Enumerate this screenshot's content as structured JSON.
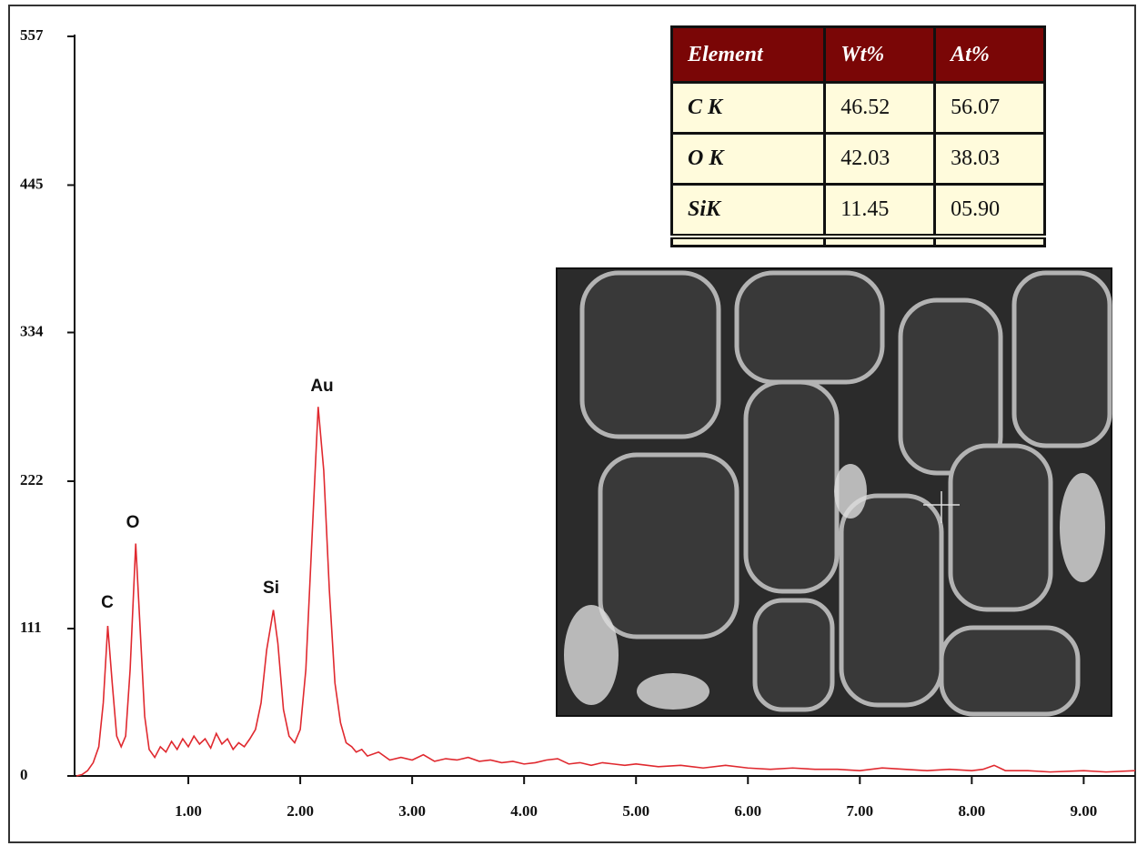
{
  "chart_data": {
    "type": "line",
    "x": [
      0.0,
      0.05,
      0.1,
      0.15,
      0.2,
      0.24,
      0.28,
      0.32,
      0.36,
      0.4,
      0.44,
      0.48,
      0.53,
      0.57,
      0.61,
      0.65,
      0.7,
      0.75,
      0.8,
      0.85,
      0.9,
      0.95,
      1.0,
      1.05,
      1.1,
      1.15,
      1.2,
      1.25,
      1.3,
      1.35,
      1.4,
      1.45,
      1.5,
      1.55,
      1.6,
      1.65,
      1.7,
      1.76,
      1.8,
      1.85,
      1.9,
      1.95,
      2.0,
      2.05,
      2.1,
      2.16,
      2.21,
      2.26,
      2.31,
      2.36,
      2.41,
      2.46,
      2.5,
      2.55,
      2.6,
      2.7,
      2.8,
      2.9,
      3.0,
      3.1,
      3.2,
      3.3,
      3.4,
      3.5,
      3.6,
      3.7,
      3.8,
      3.9,
      4.0,
      4.1,
      4.2,
      4.3,
      4.4,
      4.5,
      4.6,
      4.7,
      4.8,
      4.9,
      5.0,
      5.2,
      5.4,
      5.6,
      5.8,
      6.0,
      6.2,
      6.4,
      6.6,
      6.8,
      7.0,
      7.2,
      7.4,
      7.6,
      7.8,
      8.0,
      8.1,
      8.2,
      8.3,
      8.5,
      8.7,
      9.0,
      9.2,
      9.46
    ],
    "values": [
      0,
      1,
      4,
      10,
      22,
      55,
      113,
      70,
      30,
      22,
      30,
      80,
      175,
      110,
      45,
      20,
      14,
      22,
      18,
      26,
      20,
      28,
      22,
      30,
      24,
      28,
      21,
      32,
      24,
      28,
      20,
      25,
      22,
      28,
      35,
      55,
      95,
      125,
      100,
      50,
      30,
      25,
      35,
      80,
      170,
      278,
      230,
      140,
      70,
      40,
      25,
      22,
      18,
      20,
      15,
      18,
      12,
      14,
      12,
      16,
      11,
      13,
      12,
      14,
      11,
      12,
      10,
      11,
      9,
      10,
      12,
      13,
      9,
      10,
      8,
      10,
      9,
      8,
      9,
      7,
      8,
      6,
      8,
      6,
      5,
      6,
      5,
      5,
      4,
      6,
      5,
      4,
      5,
      4,
      5,
      8,
      4,
      4,
      3,
      4,
      3,
      4
    ],
    "color": "#e0292f",
    "xlim": [
      0,
      9.46
    ],
    "ylim": [
      0,
      557
    ],
    "xticks": [
      {
        "value": 1,
        "label": "1.00"
      },
      {
        "value": 2,
        "label": "2.00"
      },
      {
        "value": 3,
        "label": "3.00"
      },
      {
        "value": 4,
        "label": "4.00"
      },
      {
        "value": 5,
        "label": "5.00"
      },
      {
        "value": 6,
        "label": "6.00"
      },
      {
        "value": 7,
        "label": "7.00"
      },
      {
        "value": 8,
        "label": "8.00"
      },
      {
        "value": 9,
        "label": "9.00"
      }
    ],
    "yticks": [
      0,
      111,
      222,
      334,
      445,
      557
    ],
    "annotations": [
      "C",
      "O",
      "Si",
      "Au"
    ]
  },
  "table": {
    "header": [
      "Element",
      "Wt%",
      "At%"
    ],
    "rows": [
      [
        "C K",
        "46.52",
        "56.07"
      ],
      [
        "O K",
        "42.03",
        "38.03"
      ],
      [
        "SiK",
        "11.45",
        "05.90"
      ]
    ]
  }
}
